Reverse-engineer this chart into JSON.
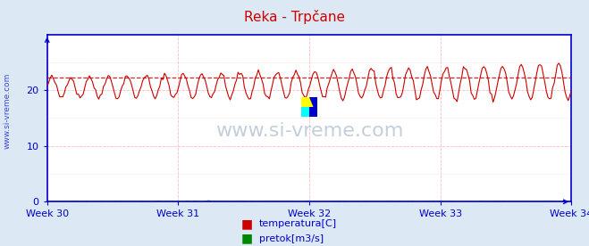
{
  "title": "Reka - Trpčane",
  "title_color": "#cc0000",
  "background_color": "#dce9f5",
  "plot_bg_color": "#ffffff",
  "grid_color": "#ffbbbb",
  "grid_color_v": "#ffbbbb",
  "axis_color": "#0000cc",
  "text_color": "#0000cc",
  "watermark_text": "www.si-vreme.com",
  "watermark_color": "#aabbcc",
  "weeks": [
    "Week 30",
    "Week 31",
    "Week 32",
    "Week 33",
    "Week 34"
  ],
  "week_positions": [
    0,
    168,
    336,
    504,
    672
  ],
  "xlim": [
    0,
    672
  ],
  "ylim": [
    0,
    30
  ],
  "yticks": [
    0,
    10,
    20
  ],
  "temp_color": "#cc0000",
  "temp_dashed_color": "#cc0000",
  "flow_color": "#008800",
  "legend_temp_label": "temperatura[C]",
  "legend_flow_label": "pretok[m3/s]",
  "n_points": 336,
  "temp_base_start": 20.5,
  "temp_base_end": 21.5,
  "temp_amplitude_start": 1.8,
  "temp_amplitude_end": 3.2,
  "temp_dashed_y": 22.3
}
